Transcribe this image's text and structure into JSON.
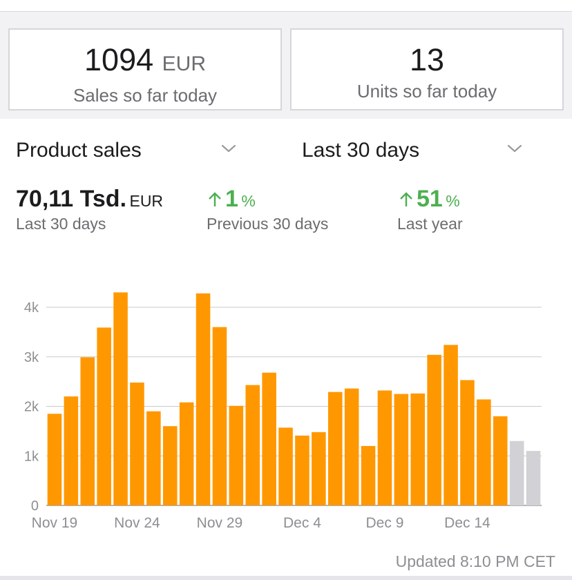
{
  "cards": [
    {
      "value": "1094",
      "unit": "EUR",
      "label": "Sales so far today"
    },
    {
      "value": "13",
      "unit": "",
      "label": "Units so far today"
    }
  ],
  "selectors": {
    "metric": "Product sales",
    "period": "Last 30 days"
  },
  "metrics": {
    "total": {
      "value": "70,11 Tsd.",
      "unit": "EUR",
      "label": "Last 30 days"
    },
    "previous": {
      "value": "1",
      "unit": "%",
      "label": "Previous 30 days",
      "direction": "up"
    },
    "last_year": {
      "value": "51",
      "unit": "%",
      "label": "Last year",
      "direction": "up"
    }
  },
  "colors": {
    "bar": "#ff9800",
    "bar_partial": "#d1d1d6",
    "up": "#4caf50"
  },
  "chart_data": {
    "type": "bar",
    "categories": [
      "Nov 19",
      "Nov 20",
      "Nov 21",
      "Nov 22",
      "Nov 23",
      "Nov 24",
      "Nov 25",
      "Nov 26",
      "Nov 27",
      "Nov 28",
      "Nov 29",
      "Nov 30",
      "Dec 1",
      "Dec 2",
      "Dec 3",
      "Dec 4",
      "Dec 5",
      "Dec 6",
      "Dec 7",
      "Dec 8",
      "Dec 9",
      "Dec 10",
      "Dec 11",
      "Dec 12",
      "Dec 13",
      "Dec 14",
      "Dec 15",
      "Dec 16",
      "Dec 17",
      "Dec 18"
    ],
    "values": [
      1850,
      2200,
      2990,
      3590,
      4300,
      2480,
      1900,
      1600,
      2080,
      4280,
      3600,
      2010,
      2430,
      2680,
      1570,
      1410,
      1480,
      2290,
      2360,
      1200,
      2320,
      2250,
      2260,
      3040,
      3240,
      2530,
      2140,
      1800,
      1300,
      1100
    ],
    "partial": [
      false,
      false,
      false,
      false,
      false,
      false,
      false,
      false,
      false,
      false,
      false,
      false,
      false,
      false,
      false,
      false,
      false,
      false,
      false,
      false,
      false,
      false,
      false,
      false,
      false,
      false,
      false,
      false,
      true,
      true
    ],
    "ylim": [
      0,
      4000
    ],
    "yticks": [
      0,
      1000,
      2000,
      3000,
      4000
    ],
    "yticklabels": [
      "0",
      "1k",
      "2k",
      "3k",
      "4k"
    ],
    "xticks": [
      0,
      5,
      10,
      15,
      20,
      25
    ],
    "xticklabels": [
      "Nov 19",
      "Nov 24",
      "Nov 29",
      "Dec 4",
      "Dec 9",
      "Dec 14"
    ],
    "grid": true
  },
  "footer": {
    "updated": "Updated 8:10 PM CET"
  }
}
